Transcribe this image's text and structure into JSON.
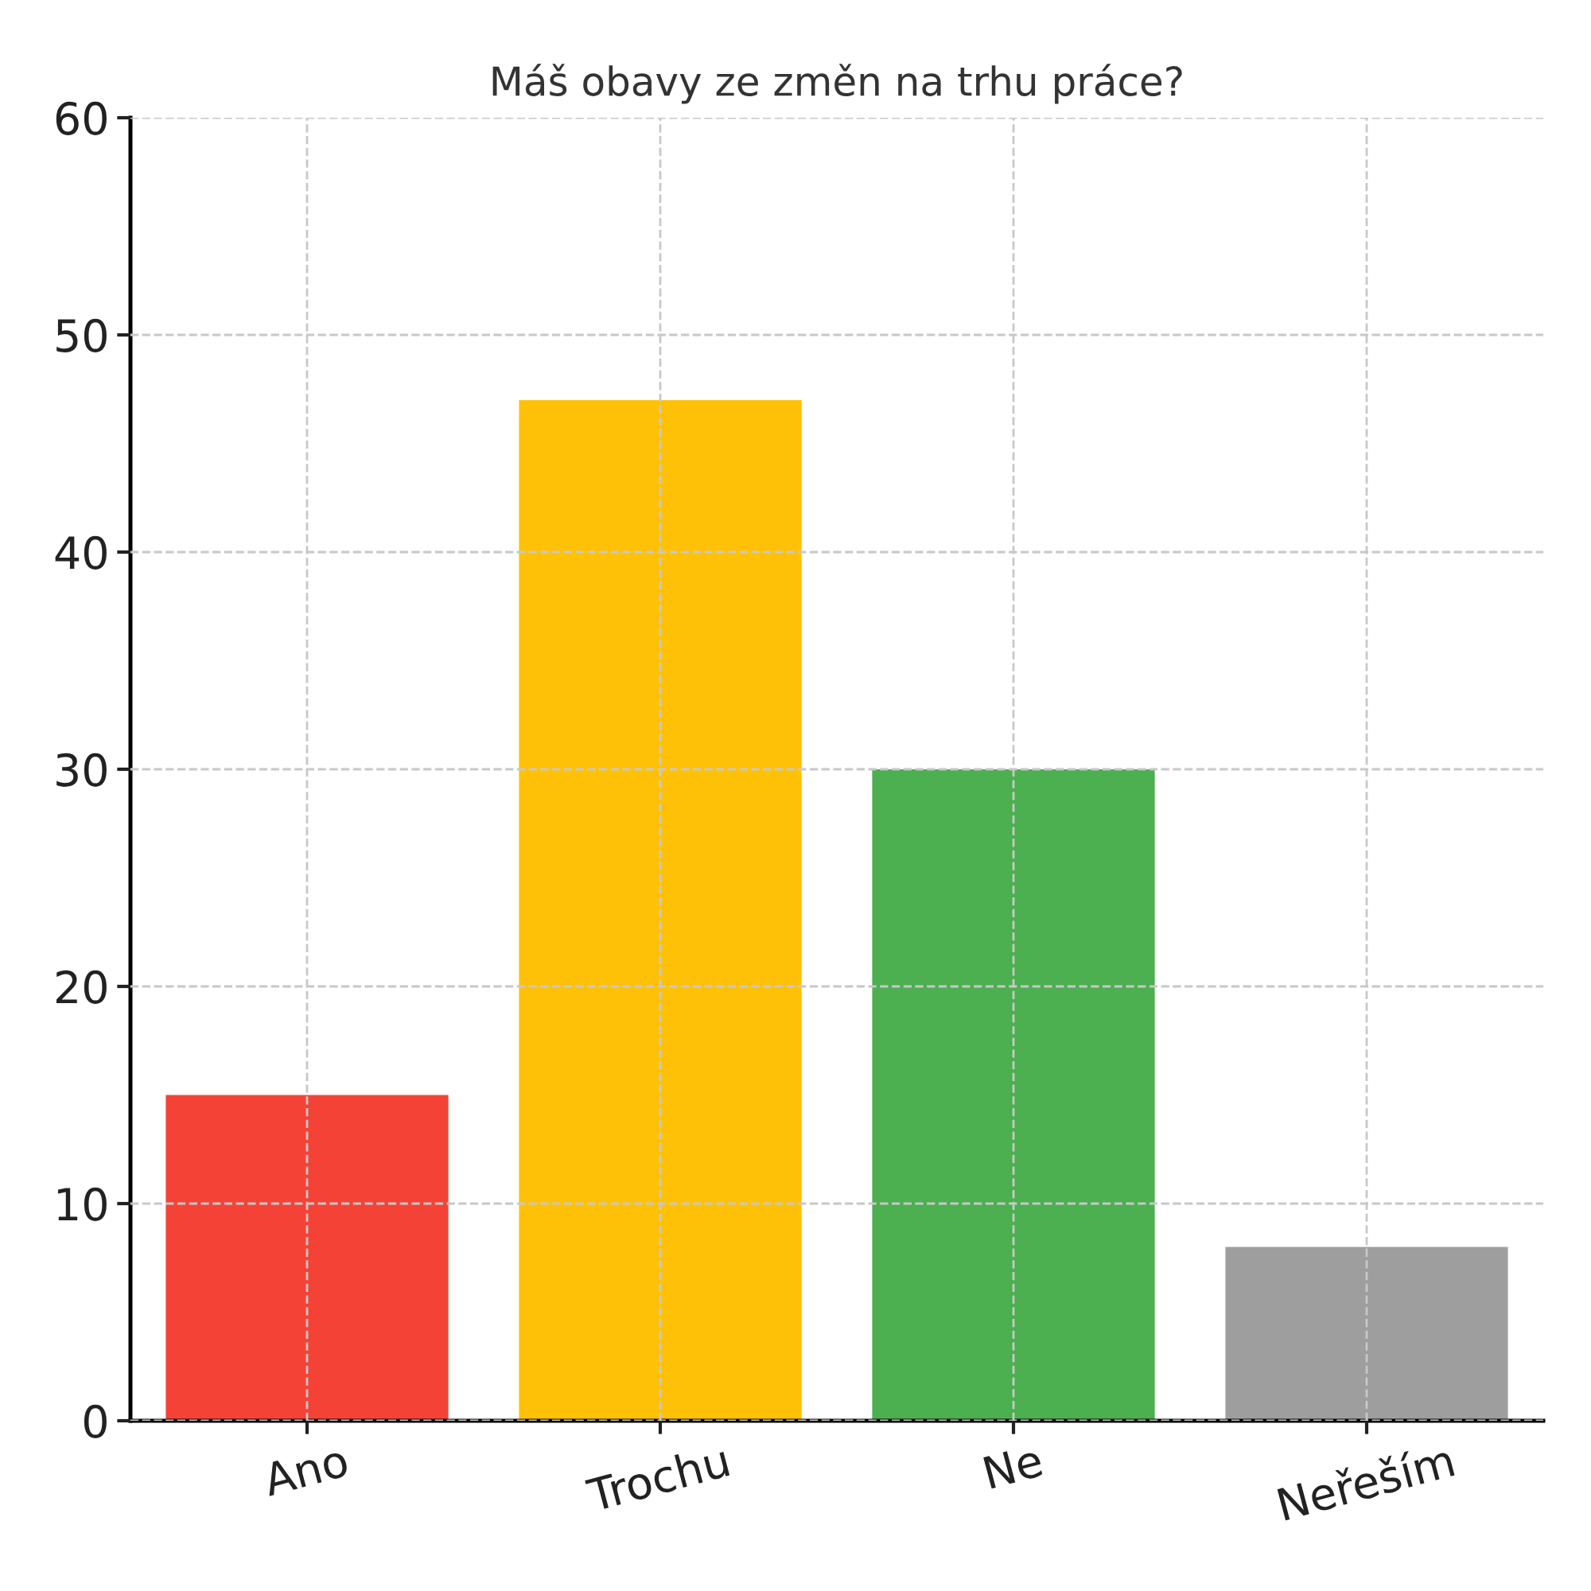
{
  "chart_data": {
    "type": "bar",
    "title": "Máš obavy ze změn na trhu práce?",
    "categories": [
      "Ano",
      "Trochu",
      "Ne",
      "Neřeším"
    ],
    "values": [
      15,
      47,
      30,
      8
    ],
    "colors": [
      "#f44336",
      "#ffc107",
      "#4caf50",
      "#9e9e9e"
    ],
    "ylim": [
      0,
      60
    ],
    "yticks": [
      0,
      10,
      20,
      30,
      40,
      50,
      60
    ],
    "grid": true
  }
}
